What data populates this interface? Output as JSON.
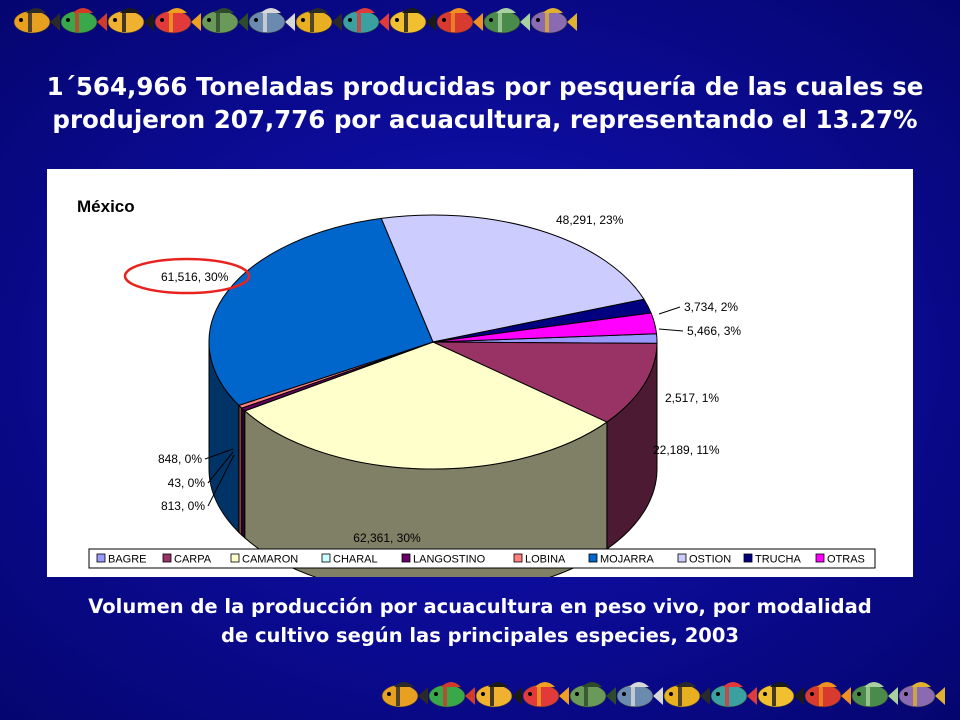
{
  "slide": {
    "title_line1": "1´564,966 Toneladas producidas por pesquería de las cuales se",
    "title_line2": "produjeron 207,776 por acuacultura, representando el 13.27%",
    "caption_line1": "Volumen de la producción por acuacultura en peso vivo, por modalidad",
    "caption_line2": "de cultivo según las principales especies, 2003",
    "decoration": "tropical-fish-banner-icon"
  },
  "chart_data": {
    "type": "pie",
    "style": "3d-pie",
    "title": "México",
    "legend_position": "bottom",
    "highlighted_label": "61,516, 30%",
    "highlight_color": "#e8231f",
    "slices": [
      {
        "name": "BAGRE",
        "value": 2517,
        "label": "2,517, 1%",
        "color": "#9999ff"
      },
      {
        "name": "CARPA",
        "value": 22189,
        "label": "22,189, 11%",
        "color": "#993366"
      },
      {
        "name": "CAMARON",
        "value": 62361,
        "label": "62,361, 30%",
        "color": "#ffffcc"
      },
      {
        "name": "CHARAL",
        "value": 43,
        "label": "43, 0%",
        "color": "#ccffff"
      },
      {
        "name": "LANGOSTINO",
        "value": 813,
        "label": "813, 0%",
        "color": "#660066"
      },
      {
        "name": "LOBINA",
        "value": 848,
        "label": "848, 0%",
        "color": "#ff8080"
      },
      {
        "name": "MOJARRA",
        "value": 61516,
        "label": "61,516, 30%",
        "color": "#0066cc"
      },
      {
        "name": "OSTION",
        "value": 48291,
        "label": "48,291, 23%",
        "color": "#ccccff"
      },
      {
        "name": "TRUCHA",
        "value": 3734,
        "label": "3,734, 2%",
        "color": "#000080"
      },
      {
        "name": "OTRAS",
        "value": 5466,
        "label": "5,466, 3%",
        "color": "#ff00ff"
      }
    ]
  }
}
